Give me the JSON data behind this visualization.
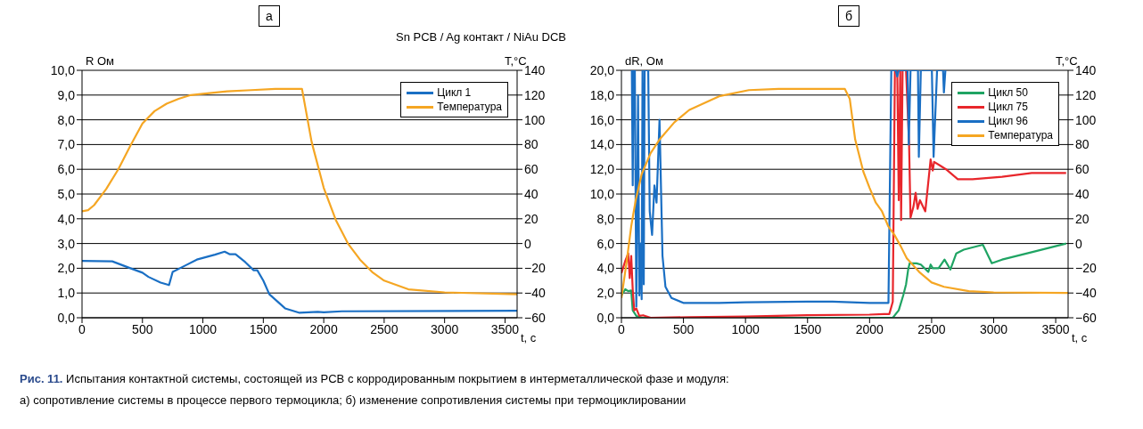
{
  "chart_data": [
    {
      "type": "line",
      "title": "а",
      "subtitle": "Sn PCB / Ag контакт / NiAu DCB",
      "xlabel": "t, c",
      "ylabel": "R Ом",
      "y2label": "T,°C",
      "xlim": [
        0,
        3600
      ],
      "xticks": [
        0,
        500,
        1000,
        1500,
        2000,
        2500,
        3000,
        3500
      ],
      "ylim": [
        0,
        10
      ],
      "yticks": [
        {
          "value": 0,
          "label": "0,0"
        },
        {
          "value": 1,
          "label": "1,0"
        },
        {
          "value": 2,
          "label": "2,0"
        },
        {
          "value": 3,
          "label": "3,0"
        },
        {
          "value": 4,
          "label": "4,0"
        },
        {
          "value": 5,
          "label": "5,0"
        },
        {
          "value": 6,
          "label": "6,0"
        },
        {
          "value": 7,
          "label": "7,0"
        },
        {
          "value": 8,
          "label": "8,0"
        },
        {
          "value": 9,
          "label": "9,0"
        },
        {
          "value": 10,
          "label": "10,0"
        }
      ],
      "y2lim": [
        -60,
        140
      ],
      "y2ticks": [
        {
          "value": -60,
          "label": "−60"
        },
        {
          "value": -40,
          "label": "−40"
        },
        {
          "value": -20,
          "label": "−20"
        },
        0,
        20,
        40,
        60,
        80,
        100,
        120,
        140
      ],
      "grid": "y",
      "legend": "top right",
      "annotations": [
        "Рис. 11.",
        "Испытания контактной системы, состоящей из PCB с корродированным покрытием в интерметаллической фазе и модуля:",
        "а) сопротивление системы в процессе первого термоцикла; б) изменение сопротивления системы при термоциклировании"
      ],
      "series": [
        {
          "name": "Цикл 1",
          "color": "#1a6fc4",
          "x": [
            0,
            250,
            400,
            500,
            550,
            650,
            720,
            750,
            850,
            950,
            1100,
            1180,
            1220,
            1270,
            1350,
            1420,
            1450,
            1500,
            1550,
            1680,
            1800,
            1950,
            2000,
            2150,
            3600
          ],
          "values": [
            2.3,
            2.28,
            2.0,
            1.82,
            1.65,
            1.42,
            1.32,
            1.85,
            2.1,
            2.35,
            2.55,
            2.67,
            2.57,
            2.57,
            2.25,
            1.92,
            1.92,
            1.5,
            0.95,
            0.38,
            0.2,
            0.24,
            0.22,
            0.26,
            0.28
          ]
        },
        {
          "name": "Температура",
          "color": "#f5a623",
          "axis": "y2",
          "x": [
            0,
            50,
            100,
            200,
            300,
            400,
            500,
            600,
            700,
            800,
            900,
            1000,
            1200,
            1400,
            1600,
            1820,
            1900,
            2000,
            2100,
            2200,
            2300,
            2400,
            2500,
            2700,
            3000,
            3600
          ],
          "values": [
            26,
            27,
            31,
            44,
            60,
            79,
            97,
            107,
            113,
            117,
            120,
            121,
            123,
            124,
            125,
            125,
            82,
            45,
            19,
            0,
            -13,
            -23,
            -30,
            -37,
            -39.5,
            -41
          ]
        }
      ]
    },
    {
      "type": "line",
      "title": "б",
      "xlabel": "t, c",
      "ylabel": "dR, Ом",
      "y2label": "T,°C",
      "xlim": [
        0,
        3600
      ],
      "xticks": [
        0,
        500,
        1000,
        1500,
        2000,
        2500,
        3000,
        3500
      ],
      "ylim": [
        0,
        20
      ],
      "yticks": [
        {
          "value": 0,
          "label": "0,0"
        },
        {
          "value": 2,
          "label": "2,0"
        },
        {
          "value": 4,
          "label": "4,0"
        },
        {
          "value": 6,
          "label": "6,0"
        },
        {
          "value": 8,
          "label": "8,0"
        },
        {
          "value": 10,
          "label": "10,0"
        },
        {
          "value": 12,
          "label": "12,0"
        },
        {
          "value": 14,
          "label": "14,0"
        },
        {
          "value": 16,
          "label": "16,0"
        },
        {
          "value": 18,
          "label": "18,0"
        },
        {
          "value": 20,
          "label": "20,0"
        }
      ],
      "y2lim": [
        -60,
        140
      ],
      "y2ticks": [
        {
          "value": -60,
          "label": "−60"
        },
        {
          "value": -40,
          "label": "−40"
        },
        {
          "value": -20,
          "label": "−20"
        },
        0,
        20,
        40,
        60,
        80,
        100,
        120,
        140
      ],
      "grid": "y",
      "legend": "top right",
      "series": [
        {
          "name": "Цикл 50",
          "color": "#1fa463",
          "x": [
            0,
            31,
            55,
            79,
            91,
            120,
            163,
            2000,
            2187,
            2235,
            2271,
            2294,
            2311,
            2323,
            2342,
            2378,
            2413,
            2473,
            2492,
            2509,
            2556,
            2604,
            2651,
            2699,
            2759,
            2913,
            2985,
            3068,
            3306,
            3584
          ],
          "values": [
            1.8,
            2.3,
            2.15,
            2.2,
            0.6,
            0.15,
            0,
            0,
            0,
            0.6,
            1.8,
            2.7,
            3.9,
            4.4,
            4.4,
            4.4,
            4.3,
            3.7,
            4.3,
            4.0,
            4.0,
            4.7,
            3.9,
            5.2,
            5.5,
            5.9,
            4.4,
            4.7,
            5.3,
            6.0
          ]
        },
        {
          "name": "Цикл 75",
          "color": "#e8262b",
          "x": [
            0,
            31,
            55,
            67,
            79,
            91,
            103,
            120,
            144,
            175,
            235,
            547,
            1000,
            1500,
            2000,
            2116,
            2159,
            2187,
            2204,
            2223,
            2235,
            2247,
            2254,
            2266,
            2294,
            2318,
            2330,
            2354,
            2371,
            2387,
            2406,
            2449,
            2492,
            2509,
            2520,
            2568,
            2616,
            2711,
            2830,
            3068,
            3306,
            3584
          ],
          "values": [
            3.6,
            4.6,
            5.2,
            3.2,
            5.0,
            2.3,
            0.6,
            0.75,
            0.15,
            0.2,
            0,
            0.05,
            0.1,
            0.2,
            0.25,
            0.3,
            0.3,
            1.3,
            20,
            20,
            9.5,
            20,
            7.9,
            20,
            20,
            14.2,
            8.1,
            9,
            10.1,
            8.8,
            9.5,
            8.6,
            12.8,
            11.9,
            12.6,
            12.3,
            12,
            11.2,
            11.2,
            11.4,
            11.7,
            11.7
          ]
        },
        {
          "name": "Цикл 96",
          "color": "#1a6fc4",
          "x": [
            84,
            91,
            98,
            108,
            120,
            134,
            144,
            154,
            163,
            170,
            180,
            187,
            216,
            228,
            247,
            266,
            283,
            307,
            331,
            355,
            403,
            499,
            787,
            1000,
            1500,
            1700,
            2000,
            2152,
            2175,
            2211,
            2223,
            2235,
            2306,
            2316,
            2330,
            2390,
            2397,
            2413,
            2502,
            2516,
            2544,
            2592,
            2599,
            2611
          ],
          "values": [
            20,
            10.7,
            20,
            20,
            0.9,
            18,
            1.8,
            6,
            1.5,
            20,
            2.7,
            20,
            20,
            8.6,
            6.7,
            10.7,
            9.3,
            16,
            5,
            2.5,
            1.6,
            1.2,
            1.2,
            1.25,
            1.3,
            1.3,
            1.2,
            1.2,
            20,
            20,
            19.5,
            20,
            20,
            14,
            20,
            20,
            13,
            20,
            20,
            13,
            20,
            20,
            18.2,
            20
          ]
        },
        {
          "name": "Температура",
          "color": "#f5a623",
          "axis": "y2",
          "x": [
            0,
            43,
            79,
            115,
            163,
            235,
            307,
            427,
            547,
            787,
            1027,
            1267,
            1800,
            1840,
            1884,
            1950,
            2000,
            2050,
            2100,
            2150,
            2200,
            2250,
            2300,
            2400,
            2500,
            2600,
            2800,
            3000,
            3600
          ],
          "values": [
            -44,
            -14,
            14,
            35,
            56,
            73,
            84,
            98,
            108,
            119,
            124,
            125,
            125,
            117,
            84,
            58,
            45,
            33,
            26,
            14,
            7,
            -2,
            -12,
            -23,
            -31.5,
            -35,
            -38.5,
            -39.5,
            -40
          ]
        }
      ]
    }
  ]
}
